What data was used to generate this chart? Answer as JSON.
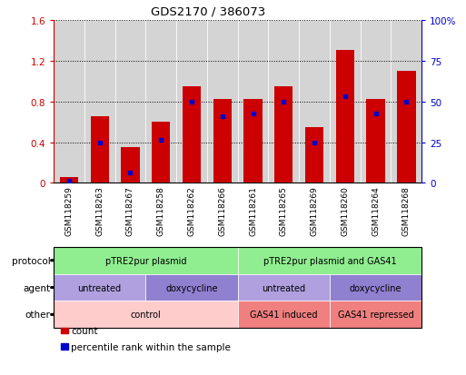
{
  "title": "GDS2170 / 386073",
  "samples": [
    "GSM118259",
    "GSM118263",
    "GSM118267",
    "GSM118258",
    "GSM118262",
    "GSM118266",
    "GSM118261",
    "GSM118265",
    "GSM118269",
    "GSM118260",
    "GSM118264",
    "GSM118268"
  ],
  "red_values": [
    0.06,
    0.65,
    0.35,
    0.6,
    0.95,
    0.82,
    0.82,
    0.95,
    0.55,
    1.3,
    0.82,
    1.1
  ],
  "blue_values": [
    0.02,
    0.4,
    0.1,
    0.42,
    0.8,
    0.65,
    0.68,
    0.8,
    0.4,
    0.85,
    0.68,
    0.8
  ],
  "ylim_left": [
    0,
    1.6
  ],
  "ylim_right": [
    0,
    100
  ],
  "yticks_left": [
    0,
    0.4,
    0.8,
    1.2,
    1.6
  ],
  "yticks_right": [
    0,
    25,
    50,
    75,
    100
  ],
  "ytick_labels_left": [
    "0",
    "0.4",
    "0.8",
    "1.2",
    "1.6"
  ],
  "ytick_labels_right": [
    "0",
    "25",
    "50",
    "75",
    "100%"
  ],
  "bar_color": "#cc0000",
  "dot_color": "#0000cc",
  "annotation_rows": [
    {
      "label": "protocol",
      "segments": [
        {
          "text": "pTRE2pur plasmid",
          "span": [
            0,
            6
          ],
          "color": "#90ee90"
        },
        {
          "text": "pTRE2pur plasmid and GAS41",
          "span": [
            6,
            12
          ],
          "color": "#90ee90"
        }
      ]
    },
    {
      "label": "agent",
      "segments": [
        {
          "text": "untreated",
          "span": [
            0,
            3
          ],
          "color": "#b0a0e0"
        },
        {
          "text": "doxycycline",
          "span": [
            3,
            6
          ],
          "color": "#9080d0"
        },
        {
          "text": "untreated",
          "span": [
            6,
            9
          ],
          "color": "#b0a0e0"
        },
        {
          "text": "doxycycline",
          "span": [
            9,
            12
          ],
          "color": "#9080d0"
        }
      ]
    },
    {
      "label": "other",
      "segments": [
        {
          "text": "control",
          "span": [
            0,
            6
          ],
          "color": "#ffcccc"
        },
        {
          "text": "GAS41 induced",
          "span": [
            6,
            9
          ],
          "color": "#f08080"
        },
        {
          "text": "GAS41 repressed",
          "span": [
            9,
            12
          ],
          "color": "#f08080"
        }
      ]
    }
  ],
  "legend_items": [
    {
      "color": "#cc0000",
      "label": "count"
    },
    {
      "color": "#0000cc",
      "label": "percentile rank within the sample"
    }
  ],
  "tick_label_color_left": "#cc0000",
  "tick_label_color_right": "#0000cc",
  "bar_width": 0.6,
  "col_bg_color": "#d4d4d4",
  "col_border_color": "#ffffff"
}
